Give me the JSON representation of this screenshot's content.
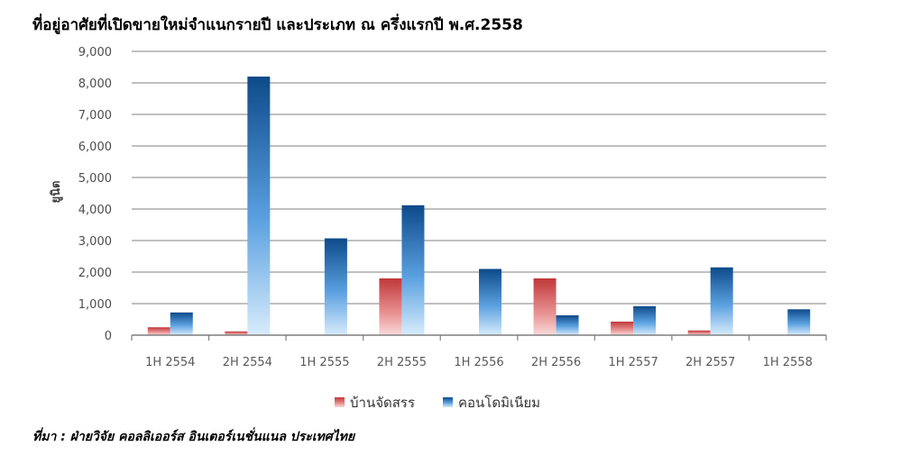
{
  "title": "ที่อยู่อาศัยที่เปิดขายใหม่จำแนกรายปี และประเภท ณ ครึ่งแรกปี พ.ศ.2558",
  "source": "ที่มา : ฝ่ายวิจัย คอลลิเออร์ส อินเตอร์เนชั่นแนล ประเทศไทย",
  "chart_data": {
    "type": "bar",
    "title": "ที่อยู่อาศัยที่เปิดขายใหม่จำแนกรายปี และประเภท ณ ครึ่งแรกปี พ.ศ.2558",
    "xlabel": "",
    "ylabel": "ยูนิต",
    "ylim": [
      0,
      9000
    ],
    "yticks": [
      0,
      1000,
      2000,
      3000,
      4000,
      5000,
      6000,
      7000,
      8000,
      9000
    ],
    "ytick_labels": [
      "0",
      "1,000",
      "2,000",
      "3,000",
      "4,000",
      "5,000",
      "6,000",
      "7,000",
      "8,000",
      "9,000"
    ],
    "grid": true,
    "legend_position": "bottom",
    "categories": [
      "1H 2554",
      "2H 2554",
      "1H 2555",
      "2H 2555",
      "1H 2556",
      "2H 2556",
      "1H 2557",
      "2H 2557",
      "1H 2558"
    ],
    "series": [
      {
        "name": "บ้านจัดสรร",
        "color": "#c0504d",
        "values": [
          250,
          120,
          0,
          1800,
          0,
          1800,
          430,
          150,
          0
        ]
      },
      {
        "name": "คอนโดมิเนียม",
        "color": "#1f5d99",
        "values": [
          720,
          8200,
          3070,
          4120,
          2100,
          630,
          920,
          2150,
          820
        ]
      }
    ]
  }
}
